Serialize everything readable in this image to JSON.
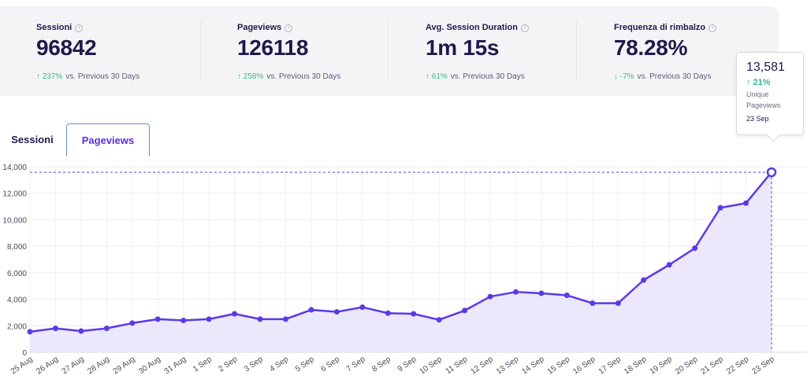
{
  "stats": [
    {
      "label": "Sessioni",
      "value": "96842",
      "change": "237%",
      "arrow": "↑",
      "period": "vs. Previous 30 Days"
    },
    {
      "label": "Pageviews",
      "value": "126118",
      "change": "258%",
      "arrow": "↑",
      "period": "vs. Previous 30 Days"
    },
    {
      "label": "Avg. Session Duration",
      "value": "1m 15s",
      "change": "61%",
      "arrow": "↑",
      "period": "vs. Previous 30 Days"
    },
    {
      "label": "Frequenza di rimbalzo",
      "value": "78.28%",
      "change": "-7%",
      "arrow": "↓",
      "period": "vs. Previous 30 Days"
    }
  ],
  "tabs": {
    "sessioni": "Sessioni",
    "pageviews": "Pageviews"
  },
  "tooltip": {
    "value": "13,581",
    "change": "↑ 21%",
    "label_line1": "Unique",
    "label_line2": "Pageviews",
    "date": "23 Sep"
  },
  "colors": {
    "line": "#5b3ae6",
    "fill": "#ece8fc",
    "positive": "#38b98a",
    "text": "#1d1b4c"
  },
  "chart_data": {
    "type": "area",
    "categories": [
      "25 Aug",
      "26 Aug",
      "27 Aug",
      "28 Aug",
      "29 Aug",
      "30 Aug",
      "31 Aug",
      "1 Sep",
      "2 Sep",
      "3 Sep",
      "4 Sep",
      "5 Sep",
      "6 Sep",
      "7 Sep",
      "8 Sep",
      "9 Sep",
      "10 Sep",
      "11 Sep",
      "12 Sep",
      "13 Sep",
      "14 Sep",
      "15 Sep",
      "16 Sep",
      "17 Sep",
      "18 Sep",
      "19 Sep",
      "20 Sep",
      "21 Sep",
      "22 Sep",
      "23 Sep"
    ],
    "values": [
      1550,
      1800,
      1600,
      1800,
      2200,
      2500,
      2400,
      2500,
      2900,
      2500,
      2500,
      3200,
      3050,
      3400,
      2950,
      2900,
      2450,
      3150,
      4200,
      4550,
      4450,
      4300,
      3700,
      3700,
      5450,
      6600,
      7850,
      10900,
      11250,
      13581
    ],
    "yticks": [
      "0",
      "2,000",
      "4,000",
      "6,000",
      "8,000",
      "10,000",
      "12,000",
      "14,000"
    ],
    "ylim": [
      0,
      14000
    ],
    "highlight": "13,581",
    "grid": true
  }
}
